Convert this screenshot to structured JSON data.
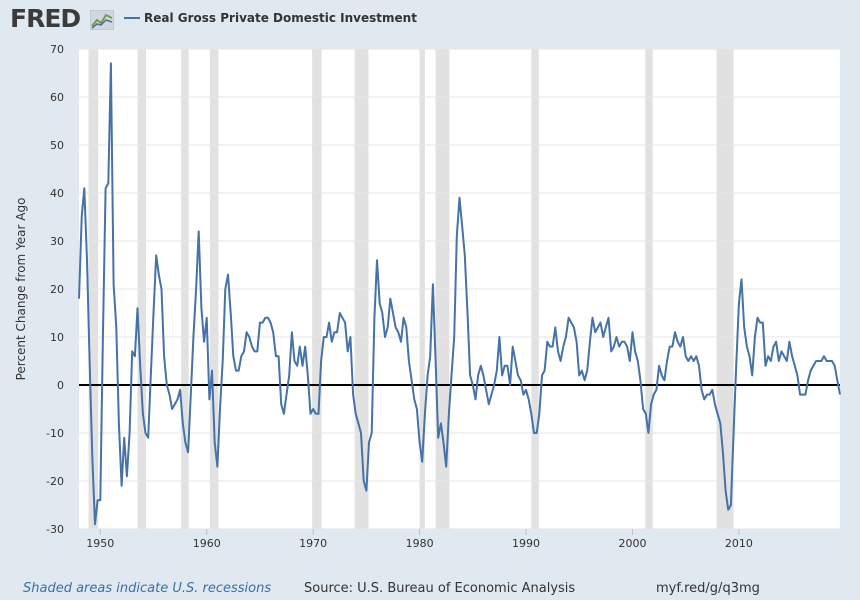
{
  "header": {
    "logo_text": "FRED",
    "legend_label": "Real Gross Private Domestic Investment"
  },
  "footer": {
    "recession_note": "Shaded areas indicate U.S. recessions",
    "source": "Source: U.S. Bureau of Economic Analysis",
    "url": "myf.red/g/q3mg"
  },
  "colors": {
    "series": "#4572a7",
    "recession": "#e1e1e1",
    "background": "#e1e9f0",
    "plot": "#ffffff"
  },
  "chart_data": {
    "type": "line",
    "title": "",
    "xlabel": "",
    "ylabel": "Percent Change from Year Ago",
    "xlim": [
      1948.0,
      2019.5
    ],
    "ylim": [
      -30,
      70
    ],
    "x_ticks": [
      "1950",
      "1960",
      "1970",
      "1980",
      "1990",
      "2000",
      "2010"
    ],
    "y_ticks": [
      "70",
      "60",
      "50",
      "40",
      "30",
      "20",
      "10",
      "0",
      "-10",
      "-20",
      "-30"
    ],
    "grid": "horizontal",
    "legend_position": "top-left",
    "recessions": [
      [
        1948.9,
        1949.8
      ],
      [
        1953.5,
        1954.3
      ],
      [
        1957.6,
        1958.3
      ],
      [
        1960.3,
        1961.1
      ],
      [
        1969.9,
        1970.8
      ],
      [
        1973.9,
        1975.2
      ],
      [
        1980.0,
        1980.5
      ],
      [
        1981.5,
        1982.8
      ],
      [
        1990.5,
        1991.2
      ],
      [
        2001.2,
        2001.9
      ],
      [
        2007.9,
        2009.5
      ]
    ],
    "series": [
      {
        "name": "Real Gross Private Domestic Investment",
        "points": [
          [
            1948.0,
            18
          ],
          [
            1948.25,
            35
          ],
          [
            1948.5,
            41
          ],
          [
            1948.75,
            26
          ],
          [
            1949.0,
            5
          ],
          [
            1949.25,
            -15
          ],
          [
            1949.5,
            -29
          ],
          [
            1949.75,
            -24
          ],
          [
            1950.0,
            -24
          ],
          [
            1950.25,
            10
          ],
          [
            1950.5,
            41
          ],
          [
            1950.75,
            42
          ],
          [
            1951.0,
            67
          ],
          [
            1951.25,
            21
          ],
          [
            1951.5,
            12
          ],
          [
            1951.75,
            -8
          ],
          [
            1952.0,
            -21
          ],
          [
            1952.25,
            -11
          ],
          [
            1952.5,
            -19
          ],
          [
            1952.75,
            -10
          ],
          [
            1953.0,
            7
          ],
          [
            1953.25,
            6
          ],
          [
            1953.5,
            16
          ],
          [
            1953.75,
            4
          ],
          [
            1954.0,
            -6
          ],
          [
            1954.25,
            -10
          ],
          [
            1954.5,
            -11
          ],
          [
            1954.75,
            2
          ],
          [
            1955.0,
            15
          ],
          [
            1955.25,
            27
          ],
          [
            1955.5,
            23
          ],
          [
            1955.75,
            20
          ],
          [
            1956.0,
            6
          ],
          [
            1956.25,
            0
          ],
          [
            1956.5,
            -2
          ],
          [
            1956.75,
            -5
          ],
          [
            1957.0,
            -4
          ],
          [
            1957.25,
            -3
          ],
          [
            1957.5,
            -1
          ],
          [
            1957.75,
            -8
          ],
          [
            1958.0,
            -12
          ],
          [
            1958.25,
            -14
          ],
          [
            1958.5,
            -2
          ],
          [
            1958.75,
            10
          ],
          [
            1959.0,
            20
          ],
          [
            1959.25,
            32
          ],
          [
            1959.5,
            16
          ],
          [
            1959.75,
            9
          ],
          [
            1960.0,
            14
          ],
          [
            1960.25,
            -3
          ],
          [
            1960.5,
            3
          ],
          [
            1960.75,
            -12
          ],
          [
            1961.0,
            -17
          ],
          [
            1961.25,
            -5
          ],
          [
            1961.5,
            5
          ],
          [
            1961.75,
            20
          ],
          [
            1962.0,
            23
          ],
          [
            1962.25,
            15
          ],
          [
            1962.5,
            6
          ],
          [
            1962.75,
            3
          ],
          [
            1963.0,
            3
          ],
          [
            1963.25,
            6
          ],
          [
            1963.5,
            7
          ],
          [
            1963.75,
            11
          ],
          [
            1964.0,
            10
          ],
          [
            1964.25,
            8
          ],
          [
            1964.5,
            7
          ],
          [
            1964.75,
            7
          ],
          [
            1965.0,
            13
          ],
          [
            1965.25,
            13
          ],
          [
            1965.5,
            14
          ],
          [
            1965.75,
            14
          ],
          [
            1966.0,
            13
          ],
          [
            1966.25,
            11
          ],
          [
            1966.5,
            6
          ],
          [
            1966.75,
            6
          ],
          [
            1967.0,
            -4
          ],
          [
            1967.25,
            -6
          ],
          [
            1967.5,
            -2
          ],
          [
            1967.75,
            2
          ],
          [
            1968.0,
            11
          ],
          [
            1968.25,
            5
          ],
          [
            1968.5,
            4
          ],
          [
            1968.75,
            8
          ],
          [
            1969.0,
            4
          ],
          [
            1969.25,
            8
          ],
          [
            1969.5,
            2
          ],
          [
            1969.75,
            -6
          ],
          [
            1970.0,
            -5
          ],
          [
            1970.25,
            -6
          ],
          [
            1970.5,
            -6
          ],
          [
            1970.75,
            5
          ],
          [
            1971.0,
            10
          ],
          [
            1971.25,
            10
          ],
          [
            1971.5,
            13
          ],
          [
            1971.75,
            9
          ],
          [
            1972.0,
            11
          ],
          [
            1972.25,
            11
          ],
          [
            1972.5,
            15
          ],
          [
            1972.75,
            14
          ],
          [
            1973.0,
            13
          ],
          [
            1973.25,
            7
          ],
          [
            1973.5,
            10
          ],
          [
            1973.75,
            -2
          ],
          [
            1974.0,
            -6
          ],
          [
            1974.25,
            -8
          ],
          [
            1974.5,
            -10
          ],
          [
            1974.75,
            -20
          ],
          [
            1975.0,
            -22
          ],
          [
            1975.25,
            -12
          ],
          [
            1975.5,
            -10
          ],
          [
            1975.75,
            14
          ],
          [
            1976.0,
            26
          ],
          [
            1976.25,
            17
          ],
          [
            1976.5,
            15
          ],
          [
            1976.75,
            10
          ],
          [
            1977.0,
            12
          ],
          [
            1977.25,
            18
          ],
          [
            1977.5,
            15
          ],
          [
            1977.75,
            12
          ],
          [
            1978.0,
            11
          ],
          [
            1978.25,
            9
          ],
          [
            1978.5,
            14
          ],
          [
            1978.75,
            12
          ],
          [
            1979.0,
            5
          ],
          [
            1979.25,
            1
          ],
          [
            1979.5,
            -3
          ],
          [
            1979.75,
            -5
          ],
          [
            1980.0,
            -12
          ],
          [
            1980.25,
            -16
          ],
          [
            1980.5,
            -6
          ],
          [
            1980.75,
            2
          ],
          [
            1981.0,
            6
          ],
          [
            1981.25,
            21
          ],
          [
            1981.5,
            5
          ],
          [
            1981.75,
            -11
          ],
          [
            1982.0,
            -8
          ],
          [
            1982.25,
            -12
          ],
          [
            1982.5,
            -17
          ],
          [
            1982.75,
            -6
          ],
          [
            1983.0,
            2
          ],
          [
            1983.25,
            10
          ],
          [
            1983.5,
            31
          ],
          [
            1983.75,
            39
          ],
          [
            1984.0,
            33
          ],
          [
            1984.25,
            27
          ],
          [
            1984.5,
            15
          ],
          [
            1984.75,
            2
          ],
          [
            1985.0,
            0
          ],
          [
            1985.25,
            -3
          ],
          [
            1985.5,
            2
          ],
          [
            1985.75,
            4
          ],
          [
            1986.0,
            2
          ],
          [
            1986.25,
            -1
          ],
          [
            1986.5,
            -4
          ],
          [
            1986.75,
            -2
          ],
          [
            1987.0,
            0
          ],
          [
            1987.25,
            3
          ],
          [
            1987.5,
            10
          ],
          [
            1987.75,
            2
          ],
          [
            1988.0,
            4
          ],
          [
            1988.25,
            4
          ],
          [
            1988.5,
            0
          ],
          [
            1988.75,
            8
          ],
          [
            1989.0,
            5
          ],
          [
            1989.25,
            2
          ],
          [
            1989.5,
            1
          ],
          [
            1989.75,
            -2
          ],
          [
            1990.0,
            -1
          ],
          [
            1990.25,
            -3
          ],
          [
            1990.5,
            -6
          ],
          [
            1990.75,
            -10
          ],
          [
            1991.0,
            -10
          ],
          [
            1991.25,
            -6
          ],
          [
            1991.5,
            2
          ],
          [
            1991.75,
            3
          ],
          [
            1992.0,
            9
          ],
          [
            1992.25,
            8
          ],
          [
            1992.5,
            8
          ],
          [
            1992.75,
            12
          ],
          [
            1993.0,
            7
          ],
          [
            1993.25,
            5
          ],
          [
            1993.5,
            8
          ],
          [
            1993.75,
            10
          ],
          [
            1994.0,
            14
          ],
          [
            1994.25,
            13
          ],
          [
            1994.5,
            12
          ],
          [
            1994.75,
            9
          ],
          [
            1995.0,
            2
          ],
          [
            1995.25,
            3
          ],
          [
            1995.5,
            1
          ],
          [
            1995.75,
            3
          ],
          [
            1996.0,
            9
          ],
          [
            1996.25,
            14
          ],
          [
            1996.5,
            11
          ],
          [
            1996.75,
            12
          ],
          [
            1997.0,
            13
          ],
          [
            1997.25,
            10
          ],
          [
            1997.5,
            12
          ],
          [
            1997.75,
            14
          ],
          [
            1998.0,
            7
          ],
          [
            1998.25,
            8
          ],
          [
            1998.5,
            10
          ],
          [
            1998.75,
            8
          ],
          [
            1999.0,
            9
          ],
          [
            1999.25,
            9
          ],
          [
            1999.5,
            8
          ],
          [
            1999.75,
            5
          ],
          [
            2000.0,
            11
          ],
          [
            2000.25,
            7
          ],
          [
            2000.5,
            5
          ],
          [
            2000.75,
            1
          ],
          [
            2001.0,
            -5
          ],
          [
            2001.25,
            -6
          ],
          [
            2001.5,
            -10
          ],
          [
            2001.75,
            -4
          ],
          [
            2002.0,
            -2
          ],
          [
            2002.25,
            -1
          ],
          [
            2002.5,
            4
          ],
          [
            2002.75,
            2
          ],
          [
            2003.0,
            1
          ],
          [
            2003.25,
            5
          ],
          [
            2003.5,
            8
          ],
          [
            2003.75,
            8
          ],
          [
            2004.0,
            11
          ],
          [
            2004.25,
            9
          ],
          [
            2004.5,
            8
          ],
          [
            2004.75,
            10
          ],
          [
            2005.0,
            6
          ],
          [
            2005.25,
            5
          ],
          [
            2005.5,
            6
          ],
          [
            2005.75,
            5
          ],
          [
            2006.0,
            6
          ],
          [
            2006.25,
            4
          ],
          [
            2006.5,
            -1
          ],
          [
            2006.75,
            -3
          ],
          [
            2007.0,
            -2
          ],
          [
            2007.25,
            -2
          ],
          [
            2007.5,
            -1
          ],
          [
            2007.75,
            -4
          ],
          [
            2008.0,
            -6
          ],
          [
            2008.25,
            -8
          ],
          [
            2008.5,
            -14
          ],
          [
            2008.75,
            -22
          ],
          [
            2009.0,
            -26
          ],
          [
            2009.25,
            -25
          ],
          [
            2009.5,
            -10
          ],
          [
            2009.75,
            4
          ],
          [
            2010.0,
            17
          ],
          [
            2010.25,
            22
          ],
          [
            2010.5,
            12
          ],
          [
            2010.75,
            8
          ],
          [
            2011.0,
            6
          ],
          [
            2011.25,
            2
          ],
          [
            2011.5,
            10
          ],
          [
            2011.75,
            14
          ],
          [
            2012.0,
            13
          ],
          [
            2012.25,
            13
          ],
          [
            2012.5,
            4
          ],
          [
            2012.75,
            6
          ],
          [
            2013.0,
            5
          ],
          [
            2013.25,
            8
          ],
          [
            2013.5,
            9
          ],
          [
            2013.75,
            5
          ],
          [
            2014.0,
            7
          ],
          [
            2014.25,
            6
          ],
          [
            2014.5,
            5
          ],
          [
            2014.75,
            9
          ],
          [
            2015.0,
            6
          ],
          [
            2015.25,
            4
          ],
          [
            2015.5,
            2
          ],
          [
            2015.75,
            -2
          ],
          [
            2016.0,
            -2
          ],
          [
            2016.25,
            -2
          ],
          [
            2016.5,
            1
          ],
          [
            2016.75,
            3
          ],
          [
            2017.0,
            4
          ],
          [
            2017.25,
            5
          ],
          [
            2017.5,
            5
          ],
          [
            2017.75,
            5
          ],
          [
            2018.0,
            6
          ],
          [
            2018.25,
            5
          ],
          [
            2018.5,
            5
          ],
          [
            2018.75,
            5
          ],
          [
            2019.0,
            4
          ],
          [
            2019.25,
            1
          ],
          [
            2019.5,
            -2
          ]
        ]
      }
    ]
  }
}
